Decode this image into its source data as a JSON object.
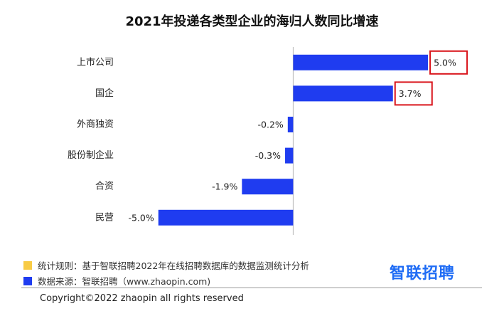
{
  "chart_data": {
    "type": "bar",
    "orientation": "horizontal",
    "title": "2021年投递各类型企业的海归人数同比增速",
    "categories": [
      "上市公司",
      "国企",
      "外商独资",
      "股份制企业",
      "合资",
      "民营"
    ],
    "values": [
      5.0,
      3.7,
      -0.2,
      -0.3,
      -1.9,
      -5.0
    ],
    "value_labels": [
      "5.0%",
      "3.7%",
      "-0.2%",
      "-0.3%",
      "-1.9%",
      "-5.0%"
    ],
    "highlighted": [
      "上市公司",
      "国企"
    ],
    "xlim": [
      -5.6,
      6.0
    ],
    "grid": false,
    "legend": "bottom-left",
    "bar_color": "#1f3cf0",
    "highlight_color": "#d9141b"
  },
  "legend": {
    "items": [
      {
        "label": "统计规则：基于智联招聘2022年在线招聘数据库的数据监测统计分析",
        "color": "#f8cb45"
      },
      {
        "label": "数据来源：智联招聘（www.zhaopin.com)",
        "color": "#1f3cf0"
      }
    ]
  },
  "logo": {
    "text": "智联招聘"
  },
  "footer": {
    "copyright": "Copyright©2022 zhaopin all rights reserved"
  }
}
